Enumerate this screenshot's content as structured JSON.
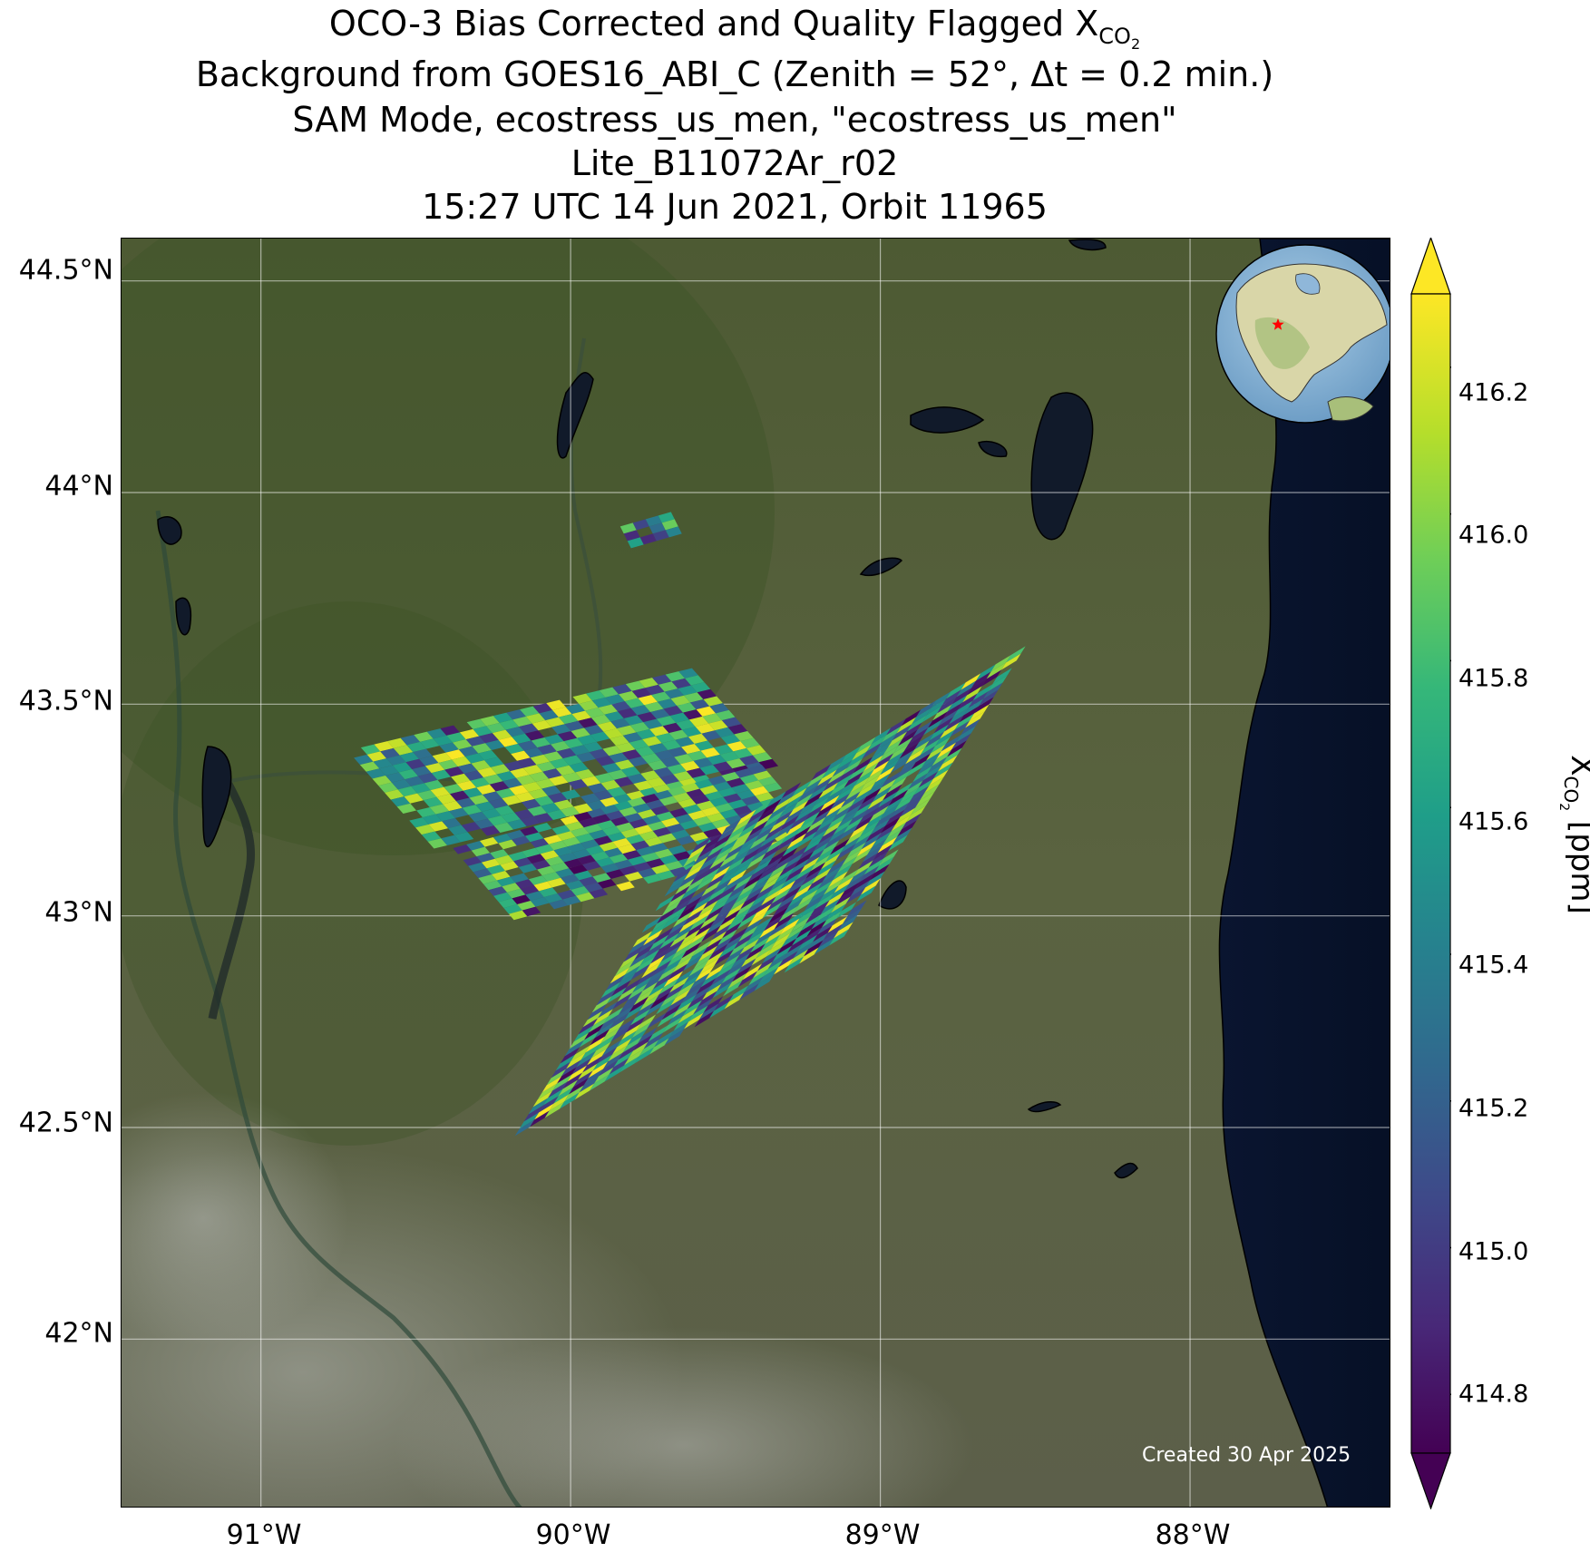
{
  "title": {
    "line1_main": "OCO-3 Bias Corrected and Quality Flagged X",
    "line1_sub": "CO",
    "line1_sub2": "2",
    "line2": "Background from GOES16_ABI_C (Zenith = 52°, Δt =  0.2 min.)",
    "line3": "SAM Mode, ecostress_us_men, \"ecostress_us_men\"",
    "line4": "Lite_B11072Ar_r02",
    "line5": "15:27 UTC 14 Jun 2021, Orbit 11965"
  },
  "axes": {
    "lat_ticks": [
      "44.5°N",
      "44°N",
      "43.5°N",
      "43°N",
      "42.5°N",
      "42°N"
    ],
    "lon_ticks": [
      "91°W",
      "90°W",
      "89°W",
      "88°W"
    ]
  },
  "colorbar": {
    "ticks": [
      "416.2",
      "416.0",
      "415.8",
      "415.6",
      "415.4",
      "415.2",
      "415.0",
      "414.8"
    ],
    "label_main": "X",
    "label_sub": "CO",
    "label_sub2": "2",
    "label_unit": " [ppm]",
    "range": [
      414.72,
      416.3
    ],
    "extend": "both",
    "colormap": "viridis"
  },
  "footer": {
    "created": "Created 30 Apr 2025"
  },
  "inset": {
    "marker_color": "#ff0000",
    "marker": "star"
  },
  "colors": {
    "land": "#55603a",
    "lake": "#0d1a33",
    "grid": "#ffffff"
  },
  "chart_data": {
    "type": "heatmap",
    "variable": "XCO2",
    "units": "ppm",
    "lat_range": [
      41.6,
      44.6
    ],
    "lon_range": [
      -91.45,
      -87.35
    ],
    "footprint_region": {
      "lat_range": [
        42.48,
        43.92
      ],
      "lon_range": [
        -90.72,
        -88.98
      ]
    },
    "value_range": [
      414.72,
      416.3
    ]
  }
}
